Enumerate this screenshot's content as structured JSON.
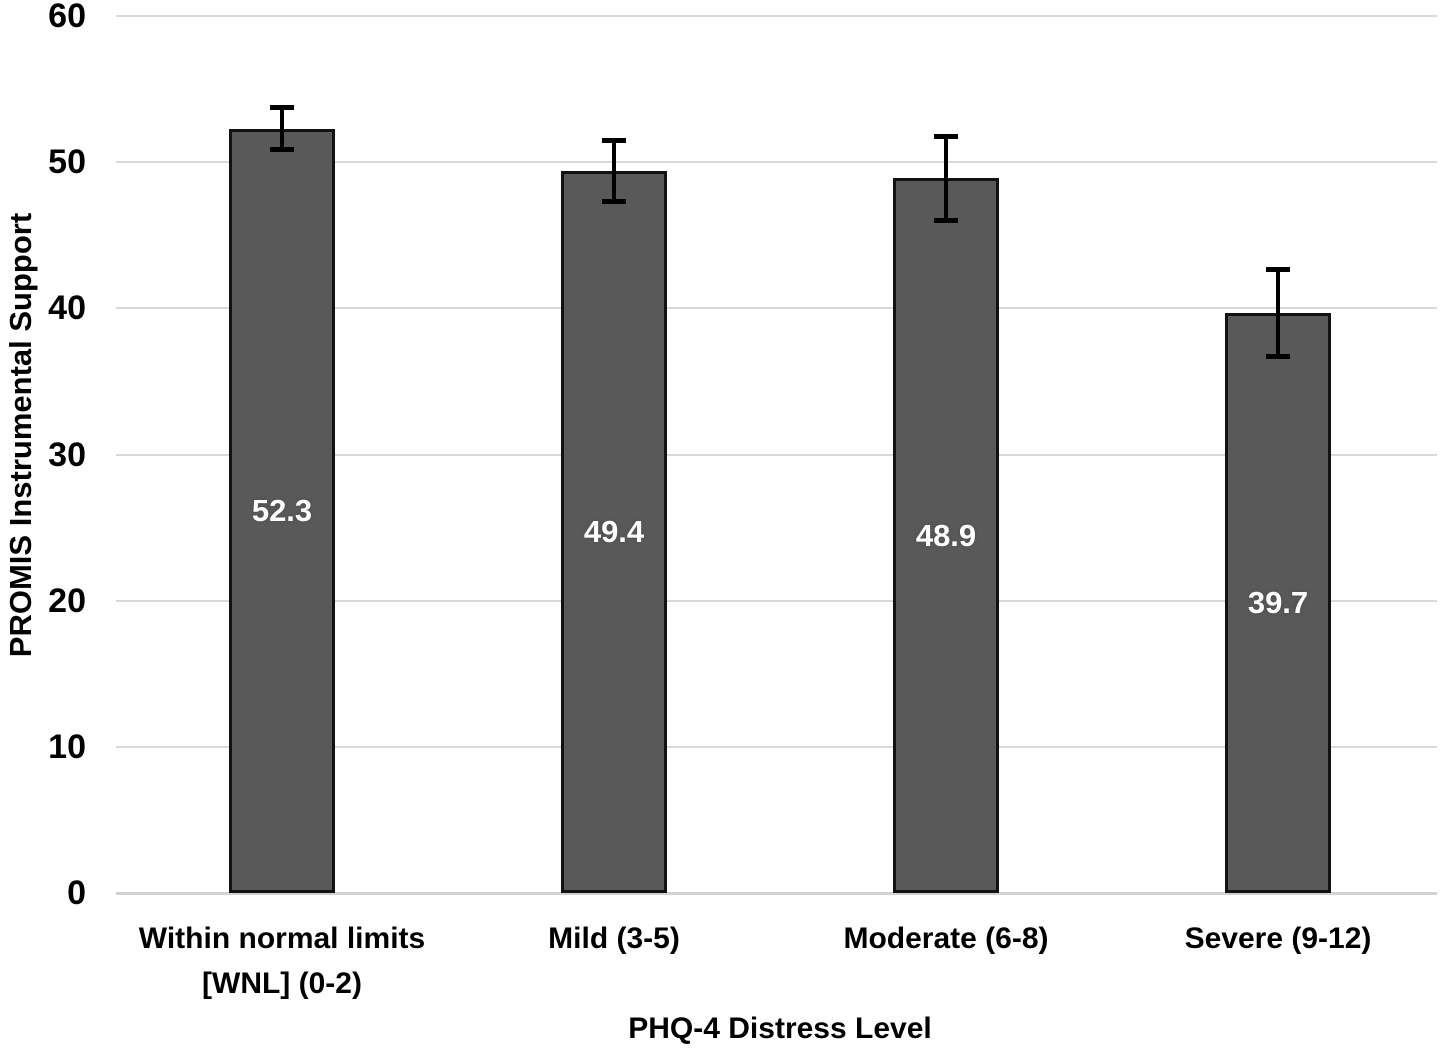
{
  "chart_data": {
    "type": "bar",
    "title": "",
    "xlabel": "PHQ-4 Distress Level",
    "ylabel": "PROMIS Instrumental Support",
    "categories": [
      "Within normal limits\n[WNL] (0-2)",
      "Mild (3-5)",
      "Moderate (6-8)",
      "Severe (9-12)"
    ],
    "values": [
      52.3,
      49.4,
      48.9,
      39.7
    ],
    "value_labels": [
      "52.3",
      "49.4",
      "48.9",
      "39.7"
    ],
    "error_bars_plus_minus": [
      1.5,
      2.1,
      2.9,
      3.0
    ],
    "ylim": [
      0,
      60
    ],
    "yticks": [
      "0",
      "10",
      "20",
      "30",
      "40",
      "50",
      "60"
    ],
    "grid": true,
    "legend_position": "none",
    "colors": {
      "bar_fill": "#595959",
      "bar_border": "#121212",
      "error_bar": "#000000",
      "gridline": "#d9d9d9",
      "axis_line": "#d2d2d2",
      "value_label_text": "#ffffff",
      "axis_text": "#000000",
      "background": "#ffffff"
    }
  }
}
